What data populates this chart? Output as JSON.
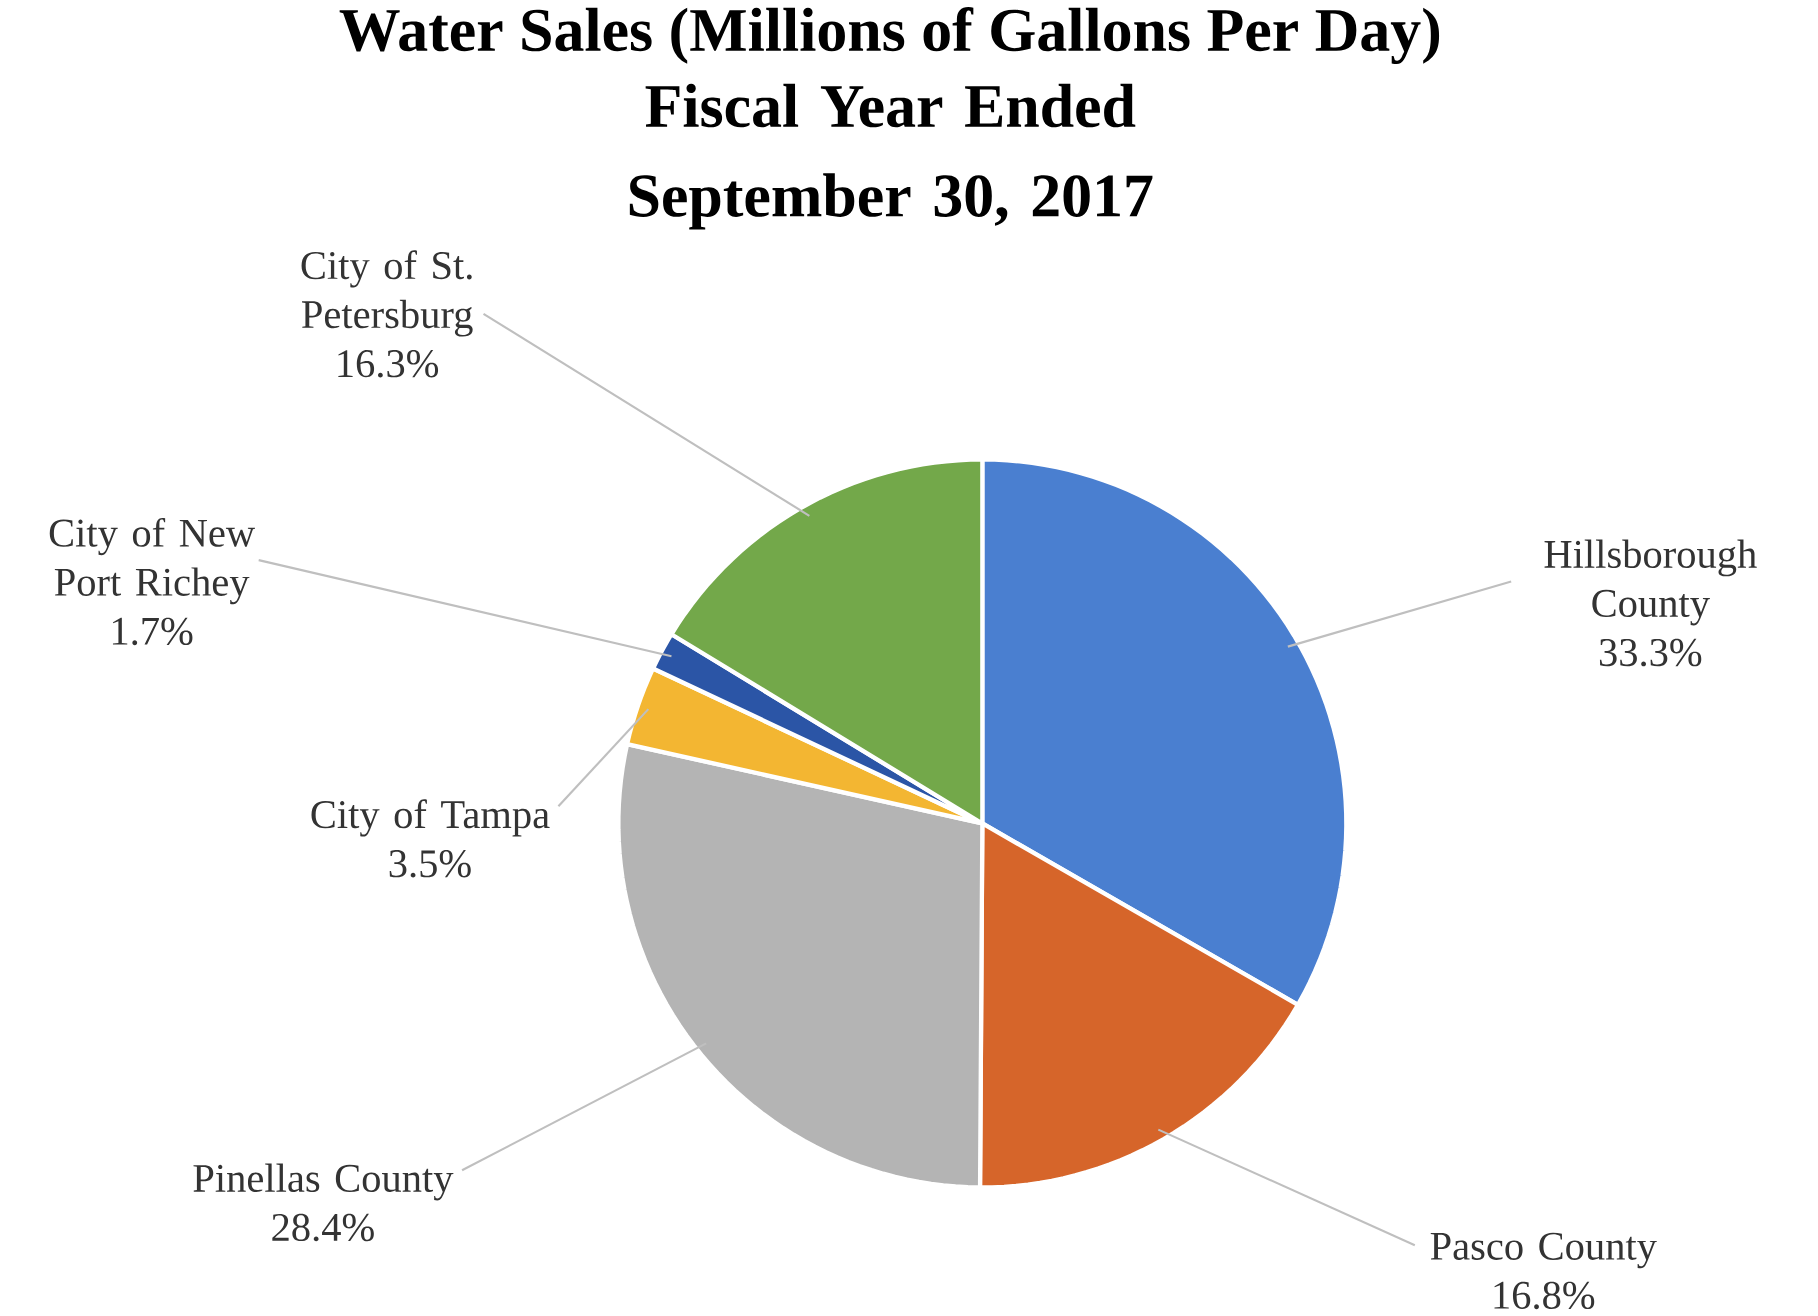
{
  "chart_data": {
    "type": "pie",
    "title": "Water Sales (Millions of Gallons Per Day)",
    "subtitle": "Fiscal Year Ended September 30, 2017",
    "categories": [
      "Hillsborough County",
      "Pasco County",
      "Pinellas County",
      "City of Tampa",
      "City of New Port Richey",
      "City of St. Petersburg"
    ],
    "values": [
      33.3,
      16.8,
      28.4,
      3.5,
      1.7,
      16.3
    ],
    "value_labels": [
      "33.3%",
      "16.8%",
      "28.4%",
      "3.5%",
      "1.7%",
      "16.3%"
    ],
    "colors": [
      "#4a7fd0",
      "#d6652a",
      "#b4b4b4",
      "#f3b632",
      "#2b55a6",
      "#73a84a"
    ]
  }
}
